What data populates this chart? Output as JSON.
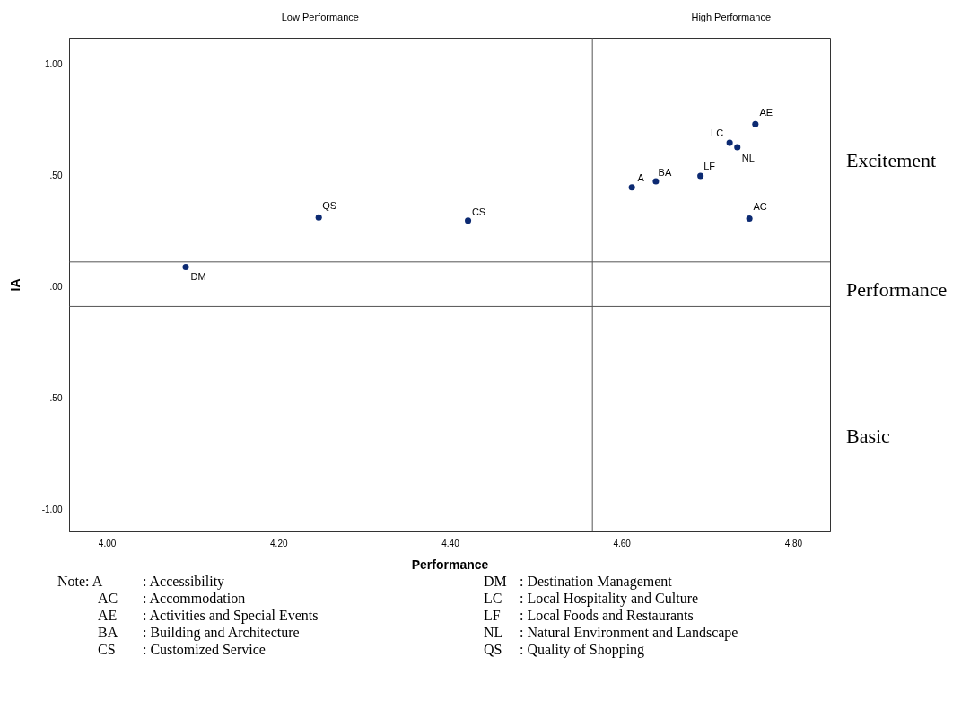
{
  "chart_data": {
    "type": "scatter",
    "xlabel": "Performance",
    "ylabel": "IA",
    "x": [
      4.612,
      4.749,
      4.756,
      4.64,
      4.421,
      4.092,
      4.726,
      4.692,
      4.735,
      4.247
    ],
    "series": [
      {
        "color": "#0c2a72",
        "values": [
          0.445,
          0.305,
          0.729,
          0.472,
          0.296,
          0.087,
          0.645,
          0.496,
          0.625,
          0.31
        ]
      }
    ],
    "xlim": [
      3.956,
      4.843
    ],
    "ylim": [
      -1.1,
      1.117
    ],
    "xticks": [
      {
        "value": 4.0,
        "label": "4.00"
      },
      {
        "value": 4.2,
        "label": "4.20"
      },
      {
        "value": 4.4,
        "label": "4.40"
      },
      {
        "value": 4.6,
        "label": "4.60"
      },
      {
        "value": 4.8,
        "label": "4.80"
      }
    ],
    "yticks": [
      {
        "value": -1.0,
        "label": "-1.00"
      },
      {
        "value": -0.5,
        "label": "-.50"
      },
      {
        "value": 0.0,
        "label": ".00"
      },
      {
        "value": 0.5,
        "label": ".50"
      },
      {
        "value": 1.0,
        "label": "1.00"
      }
    ],
    "ref_lines": [
      {
        "axis": "x",
        "value": 4.566,
        "color": "#555555"
      },
      {
        "axis": "y",
        "value": 0.11,
        "color": "#555555"
      },
      {
        "axis": "y",
        "value": -0.09,
        "color": "#555555"
      }
    ],
    "marker": "circle",
    "grid": false,
    "legend": false,
    "annotations": [
      "Low Performance",
      "High Performance",
      "Excitement",
      "Performance",
      "Basic",
      {
        "text": "A",
        "x": 4.612,
        "y": 0.445
      },
      {
        "text": "AC",
        "x": 4.749,
        "y": 0.305
      },
      {
        "text": "AE",
        "x": 4.756,
        "y": 0.729
      },
      {
        "text": "BA",
        "x": 4.64,
        "y": 0.472
      },
      {
        "text": "CS",
        "x": 4.421,
        "y": 0.296
      },
      {
        "text": "DM",
        "x": 4.092,
        "y": 0.087
      },
      {
        "text": "LC",
        "x": 4.726,
        "y": 0.645
      },
      {
        "text": "LF",
        "x": 4.692,
        "y": 0.496
      },
      {
        "text": "NL",
        "x": 4.735,
        "y": 0.625
      },
      {
        "text": "QS",
        "x": 4.247,
        "y": 0.31
      },
      "Note: A : Accessibility",
      "AC : Accommodation",
      "AE : Activities and Special Events",
      "BA : Building and Architecture",
      "CS : Customized Service",
      "DM : Destination Management",
      "LC : Local Hospitality and Culture",
      "LF : Local Foods and Restaurants",
      "NL : Natural Environment and Landscape",
      "QS : Quality of Shopping"
    ]
  }
}
